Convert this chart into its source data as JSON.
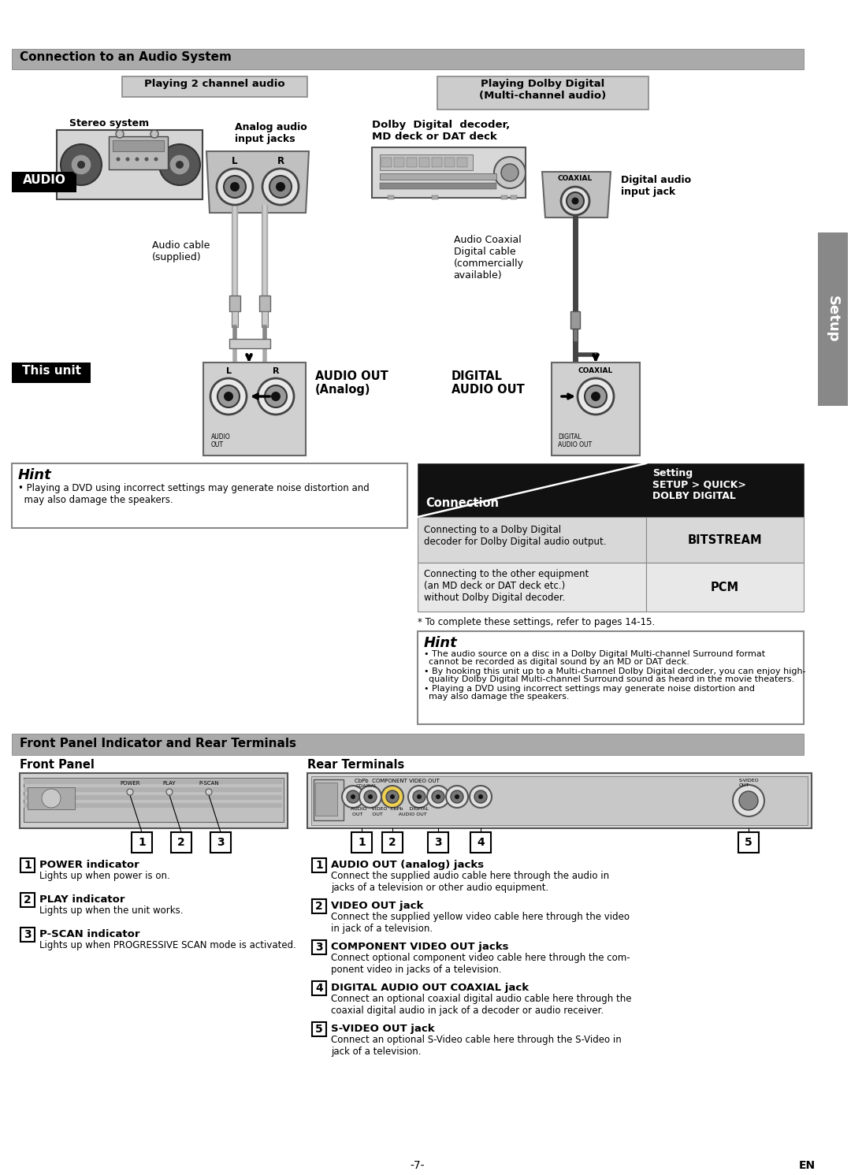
{
  "bg_color": "#ffffff",
  "section1_title": "Connection to an Audio System",
  "section2_title": "Front Panel Indicator and Rear Terminals",
  "playing2ch": "Playing 2 channel audio",
  "playingDolby": "Playing Dolby Digital\n(Multi-channel audio)",
  "stereo_label": "Stereo system",
  "analog_label": "Analog audio\ninput jacks",
  "audio_box": "AUDIO",
  "this_unit": "This unit",
  "audio_cable_label": "Audio cable\n(supplied)",
  "audio_out_label": "AUDIO OUT\n(Analog)",
  "digital_audio_out": "DIGITAL\nAUDIO OUT",
  "dolby_label": "Dolby  Digital  decoder,\nMD deck or DAT deck",
  "coaxial_cable_label": "Audio Coaxial\nDigital cable\n(commercially\navailable)",
  "digital_input_label": "Digital audio\ninput jack",
  "setup_text": "Setup",
  "hint_title": "Hint",
  "hint1": "• Playing a DVD using incorrect settings may generate noise distortion and\n  may also damage the speakers.",
  "table_col1": "Connection",
  "table_setting": "Setting",
  "table_col2": "SETUP > QUICK>\nDOLBY DIGITAL",
  "table_r1c1": "Connecting to a Dolby Digital\ndecoder for Dolby Digital audio output.",
  "table_r1c2": "BITSTREAM",
  "table_r2c1": "Connecting to the other equipment\n(an MD deck or DAT deck etc.)\nwithout Dolby Digital decoder.",
  "table_r2c2": "PCM",
  "table_note": "* To complete these settings, refer to pages 14-15.",
  "hint2_line1": "• The audio source on a disc in a Dolby Digital Multi-channel Surround format cannot be recorded as digital sound by an MD or DAT deck.",
  "hint2_line2": "• By hooking this unit up to a Multi-channel Dolby Digital decoder, you can enjoy high-quality Dolby Digital Multi-channel Surround sound as heard in the movie theaters.",
  "hint2_line3": "• Playing a DVD using incorrect settings may generate noise distortion and may also damage the speakers.",
  "fp_title": "Front Panel",
  "rt_title": "Rear Terminals",
  "fp_items": [
    {
      "num": "1",
      "bold": "POWER indicator",
      "text": "Lights up when power is on."
    },
    {
      "num": "2",
      "bold": "PLAY indicator",
      "text": "Lights up when the unit works."
    },
    {
      "num": "3",
      "bold": "P-SCAN indicator",
      "text": "Lights up when PROGRESSIVE SCAN mode is activated."
    }
  ],
  "rt_items": [
    {
      "num": "1",
      "bold": "AUDIO OUT (analog) jacks",
      "text": "Connect the supplied audio cable here through the audio in\njacks of a television or other audio equipment."
    },
    {
      "num": "2",
      "bold": "VIDEO OUT jack",
      "text": "Connect the supplied yellow video cable here through the video\nin jack of a television."
    },
    {
      "num": "3",
      "bold": "COMPONENT VIDEO OUT jacks",
      "text": "Connect optional component video cable here through the com-\nponent video in jacks of a television."
    },
    {
      "num": "4",
      "bold": "DIGITAL AUDIO OUT COAXIAL jack",
      "text": "Connect an optional coaxial digital audio cable here through the\ncoaxial digital audio in jack of a decoder or audio receiver."
    },
    {
      "num": "5",
      "bold": "S-VIDEO OUT jack",
      "text": "Connect an optional S-Video cable here through the S-Video in\njack of a television."
    }
  ],
  "page_num": "-7-",
  "lang": "EN"
}
